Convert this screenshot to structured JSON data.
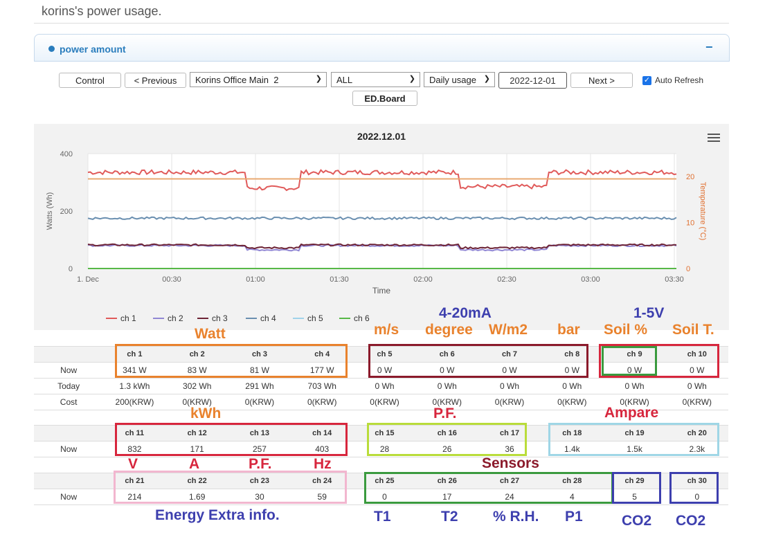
{
  "page": {
    "title": "korins's power usage."
  },
  "panel": {
    "title": "power amount",
    "collapse": "−"
  },
  "toolbar": {
    "control": "Control",
    "previous": "< Previous",
    "site": "Korins Office Main  2",
    "filter": "ALL",
    "mode": "Daily usage",
    "date": "2022-12-01",
    "next": "Next >",
    "auto_refresh": "Auto Refresh",
    "auto_refresh_checked": true,
    "edboard": "ED.Board"
  },
  "chart_data": {
    "type": "line",
    "title": "2022.12.01",
    "xlabel": "Time",
    "ylabel": "Watts (Wh)",
    "y2label": "Temperature (°C)",
    "x_ticks": [
      "1. Dec",
      "00:30",
      "01:00",
      "01:30",
      "02:00",
      "02:30",
      "03:00",
      "03:30"
    ],
    "y_ticks": [
      "0",
      "200",
      "400"
    ],
    "y2_ticks": [
      "0",
      "10",
      "20"
    ],
    "ylim": [
      0,
      400
    ],
    "y2lim": [
      0,
      25
    ],
    "grid": true,
    "legend": "bottom-center",
    "series": [
      {
        "name": "ch 1",
        "color": "#e05a5a",
        "base": 335,
        "dips": [
          [
            0.27,
            0.36,
            280
          ],
          [
            0.63,
            0.78,
            285
          ]
        ],
        "noise": 8
      },
      {
        "name": "ch 2",
        "color": "#9187d4",
        "base": 80,
        "dips": [
          [
            0.27,
            0.36,
            65
          ],
          [
            0.63,
            0.78,
            65
          ]
        ],
        "noise": 3
      },
      {
        "name": "ch 3",
        "color": "#6d2335",
        "base": 82,
        "dips": [
          [
            0.27,
            0.36,
            72
          ],
          [
            0.63,
            0.78,
            72
          ]
        ],
        "noise": 3
      },
      {
        "name": "ch 4",
        "color": "#6a8fb0",
        "base": 175,
        "dips": [],
        "noise": 4
      },
      {
        "name": "ch 5",
        "color": "#9fd3ea",
        "base": 0,
        "dips": [],
        "noise": 0
      },
      {
        "name": "ch 6",
        "color": "#57b847",
        "base": 0,
        "dips": [],
        "noise": 0
      },
      {
        "name": "Temperature",
        "color": "#e8a870",
        "axis": "right",
        "base": 19.5,
        "dips": [],
        "noise": 0
      }
    ]
  },
  "table1": {
    "headers": [
      "ch 1",
      "ch 2",
      "ch 3",
      "ch 4",
      "ch 5",
      "ch 6",
      "ch 7",
      "ch 8",
      "ch 9",
      "ch 10"
    ],
    "rows": [
      {
        "label": "Now",
        "cells": [
          "341 W",
          "83 W",
          "81 W",
          "177 W",
          "0 W",
          "0 W",
          "0 W",
          "0 W",
          "0 W",
          "0 W"
        ]
      },
      {
        "label": "Today",
        "cells": [
          "1.3 kWh",
          "302 Wh",
          "291 Wh",
          "703 Wh",
          "0 Wh",
          "0 Wh",
          "0 Wh",
          "0 Wh",
          "0 Wh",
          "0 Wh"
        ]
      },
      {
        "label": "Cost",
        "cells": [
          "200(KRW)",
          "0(KRW)",
          "0(KRW)",
          "0(KRW)",
          "0(KRW)",
          "0(KRW)",
          "0(KRW)",
          "0(KRW)",
          "0(KRW)",
          "0(KRW)"
        ]
      }
    ]
  },
  "table2": {
    "headers": [
      "ch 11",
      "ch 12",
      "ch 13",
      "ch 14",
      "ch 15",
      "ch 16",
      "ch 17",
      "ch 18",
      "ch 19",
      "ch 20"
    ],
    "rows": [
      {
        "label": "Now",
        "cells": [
          "832",
          "171",
          "257",
          "403",
          "28",
          "26",
          "36",
          "1.4k",
          "1.5k",
          "2.3k"
        ]
      }
    ]
  },
  "table3": {
    "headers": [
      "ch 21",
      "ch 22",
      "ch 23",
      "ch 24",
      "ch 25",
      "ch 26",
      "ch 27",
      "ch 28",
      "ch 29",
      "ch 30"
    ],
    "rows": [
      {
        "label": "Now",
        "cells": [
          "214",
          "1.69",
          "30",
          "59",
          "0",
          "17",
          "24",
          "4",
          "5",
          "0"
        ]
      }
    ]
  },
  "annotations": {
    "watt": "Watt",
    "ma": "4-20mA",
    "v15": "1-5V",
    "ms": "m/s",
    "degree": "degree",
    "wm2": "W/m2",
    "bar": "bar",
    "soil_pct": "Soil %",
    "soil_t": "Soil T.",
    "kwh": "kWh",
    "pf_top": "P.F.",
    "ampare": "Ampare",
    "v": "V",
    "a": "A",
    "pf": "P.F.",
    "hz": "Hz",
    "sensors": "Sensors",
    "energy_extra": "Energy Extra info.",
    "t1": "T1",
    "t2": "T2",
    "rh": "% R.H.",
    "p1": "P1",
    "co2a": "CO2",
    "co2b": "CO2"
  },
  "colors": {
    "orange": "#e9822d",
    "darkred": "#8b1a2b",
    "red": "#d7263d",
    "green": "#3a9a3e",
    "lime": "#b9dc3a",
    "lightblue": "#9fd6e6",
    "pink": "#f2b6cf",
    "navy": "#3d3fae"
  }
}
